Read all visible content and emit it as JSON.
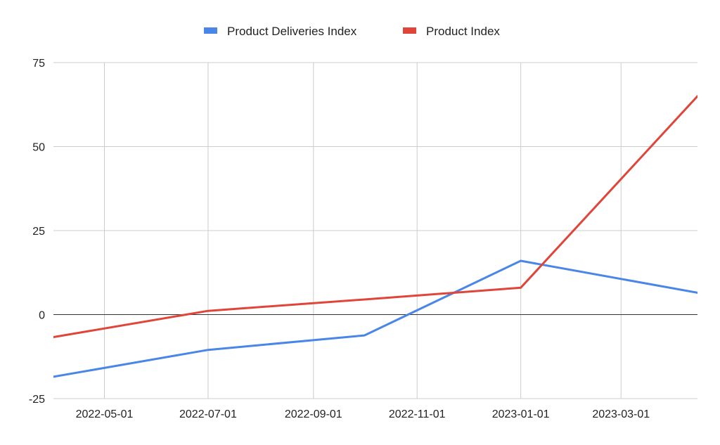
{
  "chart_data": {
    "type": "line",
    "title": "",
    "xlabel": "",
    "ylabel": "",
    "x_axis_type": "date",
    "xlim": [
      "2022-04-01",
      "2023-04-15"
    ],
    "ylim": [
      -25,
      75
    ],
    "y_ticks": [
      -25,
      0,
      25,
      50,
      75
    ],
    "y_tick_labels": [
      "-25",
      "0",
      "25",
      "50",
      "75"
    ],
    "x_ticks": [
      "2022-05-01",
      "2022-07-01",
      "2022-09-01",
      "2022-11-01",
      "2023-01-01",
      "2023-03-01"
    ],
    "x_tick_labels": [
      "2022-05-01",
      "2022-07-01",
      "2022-09-01",
      "2022-11-01",
      "2023-01-01",
      "2023-03-01"
    ],
    "grid": true,
    "legend_position": "top",
    "series": [
      {
        "name": "Product Deliveries Index",
        "color": "#4a86e8",
        "x": [
          "2022-04-01",
          "2022-07-01",
          "2022-10-01",
          "2023-01-01",
          "2023-04-15"
        ],
        "y": [
          -18.5,
          -10.5,
          -6.2,
          16.0,
          6.5
        ]
      },
      {
        "name": "Product Index",
        "color": "#e0453a",
        "x": [
          "2022-04-01",
          "2022-07-01",
          "2022-10-01",
          "2023-01-01",
          "2023-04-15"
        ],
        "y": [
          -6.7,
          1.1,
          4.5,
          8.0,
          65.0
        ]
      }
    ]
  }
}
